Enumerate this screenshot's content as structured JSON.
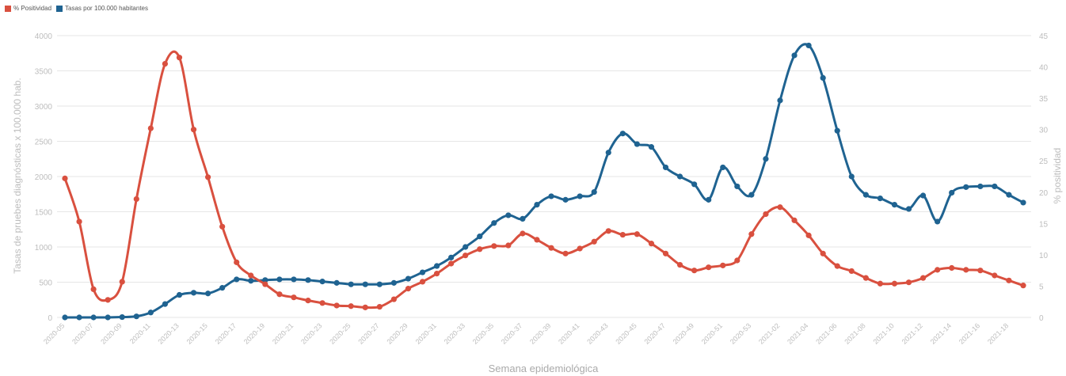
{
  "legend": {
    "positivity_label": "% Positividad",
    "rate_label": "Tasas por 100.000 habitantes"
  },
  "colors": {
    "positivity": "#d9503f",
    "rate": "#1f6391",
    "grid": "#e6e6e6",
    "axis_text": "#bdbdbd"
  },
  "chart_data": {
    "type": "line",
    "xlabel": "Semana epidemiológica",
    "ylabel_left": "Tasas de pruebes diagnósticas x 100.000 hab.",
    "ylabel_right": "% positividad",
    "ylim_left": [
      0,
      4000
    ],
    "ylim_right": [
      0,
      45
    ],
    "yticks_left": [
      0,
      500,
      1000,
      1500,
      2000,
      2500,
      3000,
      3500,
      4000
    ],
    "yticks_right": [
      0,
      5,
      10,
      15,
      20,
      25,
      30,
      35,
      40,
      45
    ],
    "grid": "horizontal",
    "legend_position": "top-left",
    "x_tick_labels": [
      "2020-05",
      "2020-07",
      "2020-09",
      "2020-11",
      "2020-13",
      "2020-15",
      "2020-17",
      "2020-19",
      "2020-21",
      "2020-23",
      "2020-25",
      "2020-27",
      "2020-29",
      "2020-31",
      "2020-33",
      "2020-35",
      "2020-37",
      "2020-39",
      "2020-41",
      "2020-43",
      "2020-45",
      "2020-47",
      "2020-49",
      "2020-51",
      "2020-53",
      "2021-02",
      "2021-04",
      "2021-06",
      "2021-08",
      "2021-10",
      "2021-12",
      "2021-14",
      "2021-16",
      "2021-18"
    ],
    "series": [
      {
        "name": "% Positividad",
        "axis": "right",
        "values": [
          22.2,
          15.3,
          4.5,
          2.8,
          5.7,
          18.9,
          30.2,
          40.5,
          41.5,
          30,
          22.4,
          14.5,
          8.8,
          6.7,
          5.3,
          3.7,
          3.2,
          2.7,
          2.3,
          1.9,
          1.8,
          1.6,
          1.7,
          2.9,
          4.6,
          5.7,
          7,
          8.6,
          9.9,
          10.9,
          11.4,
          11.5,
          13.4,
          12.4,
          11.1,
          10.2,
          11,
          12.1,
          13.8,
          13.2,
          13.3,
          11.8,
          10.2,
          8.4,
          7.5,
          8,
          8.3,
          9.1,
          13.3,
          16.5,
          17.6,
          15.5,
          13.1,
          10.2,
          8.2,
          7.4,
          6.3,
          5.4,
          5.4,
          5.6,
          6.3,
          7.6,
          7.9,
          7.6,
          7.5,
          6.7,
          5.9,
          5.1
        ]
      },
      {
        "name": "Tasas por 100.000 habitantes",
        "axis": "left",
        "values": [
          0,
          0,
          0,
          0,
          5,
          15,
          70,
          190,
          320,
          350,
          340,
          420,
          540,
          520,
          530,
          540,
          540,
          530,
          510,
          490,
          470,
          470,
          470,
          490,
          550,
          640,
          730,
          850,
          1000,
          1150,
          1340,
          1450,
          1400,
          1600,
          1720,
          1670,
          1720,
          1780,
          2340,
          2610,
          2460,
          2420,
          2130,
          2000,
          1890,
          1670,
          2130,
          1860,
          1740,
          2250,
          3080,
          3720,
          3860,
          3400,
          2650,
          2000,
          1740,
          1690,
          1600,
          1540,
          1730,
          1360,
          1770,
          1850,
          1860,
          1860,
          1740,
          1630
        ]
      }
    ]
  }
}
